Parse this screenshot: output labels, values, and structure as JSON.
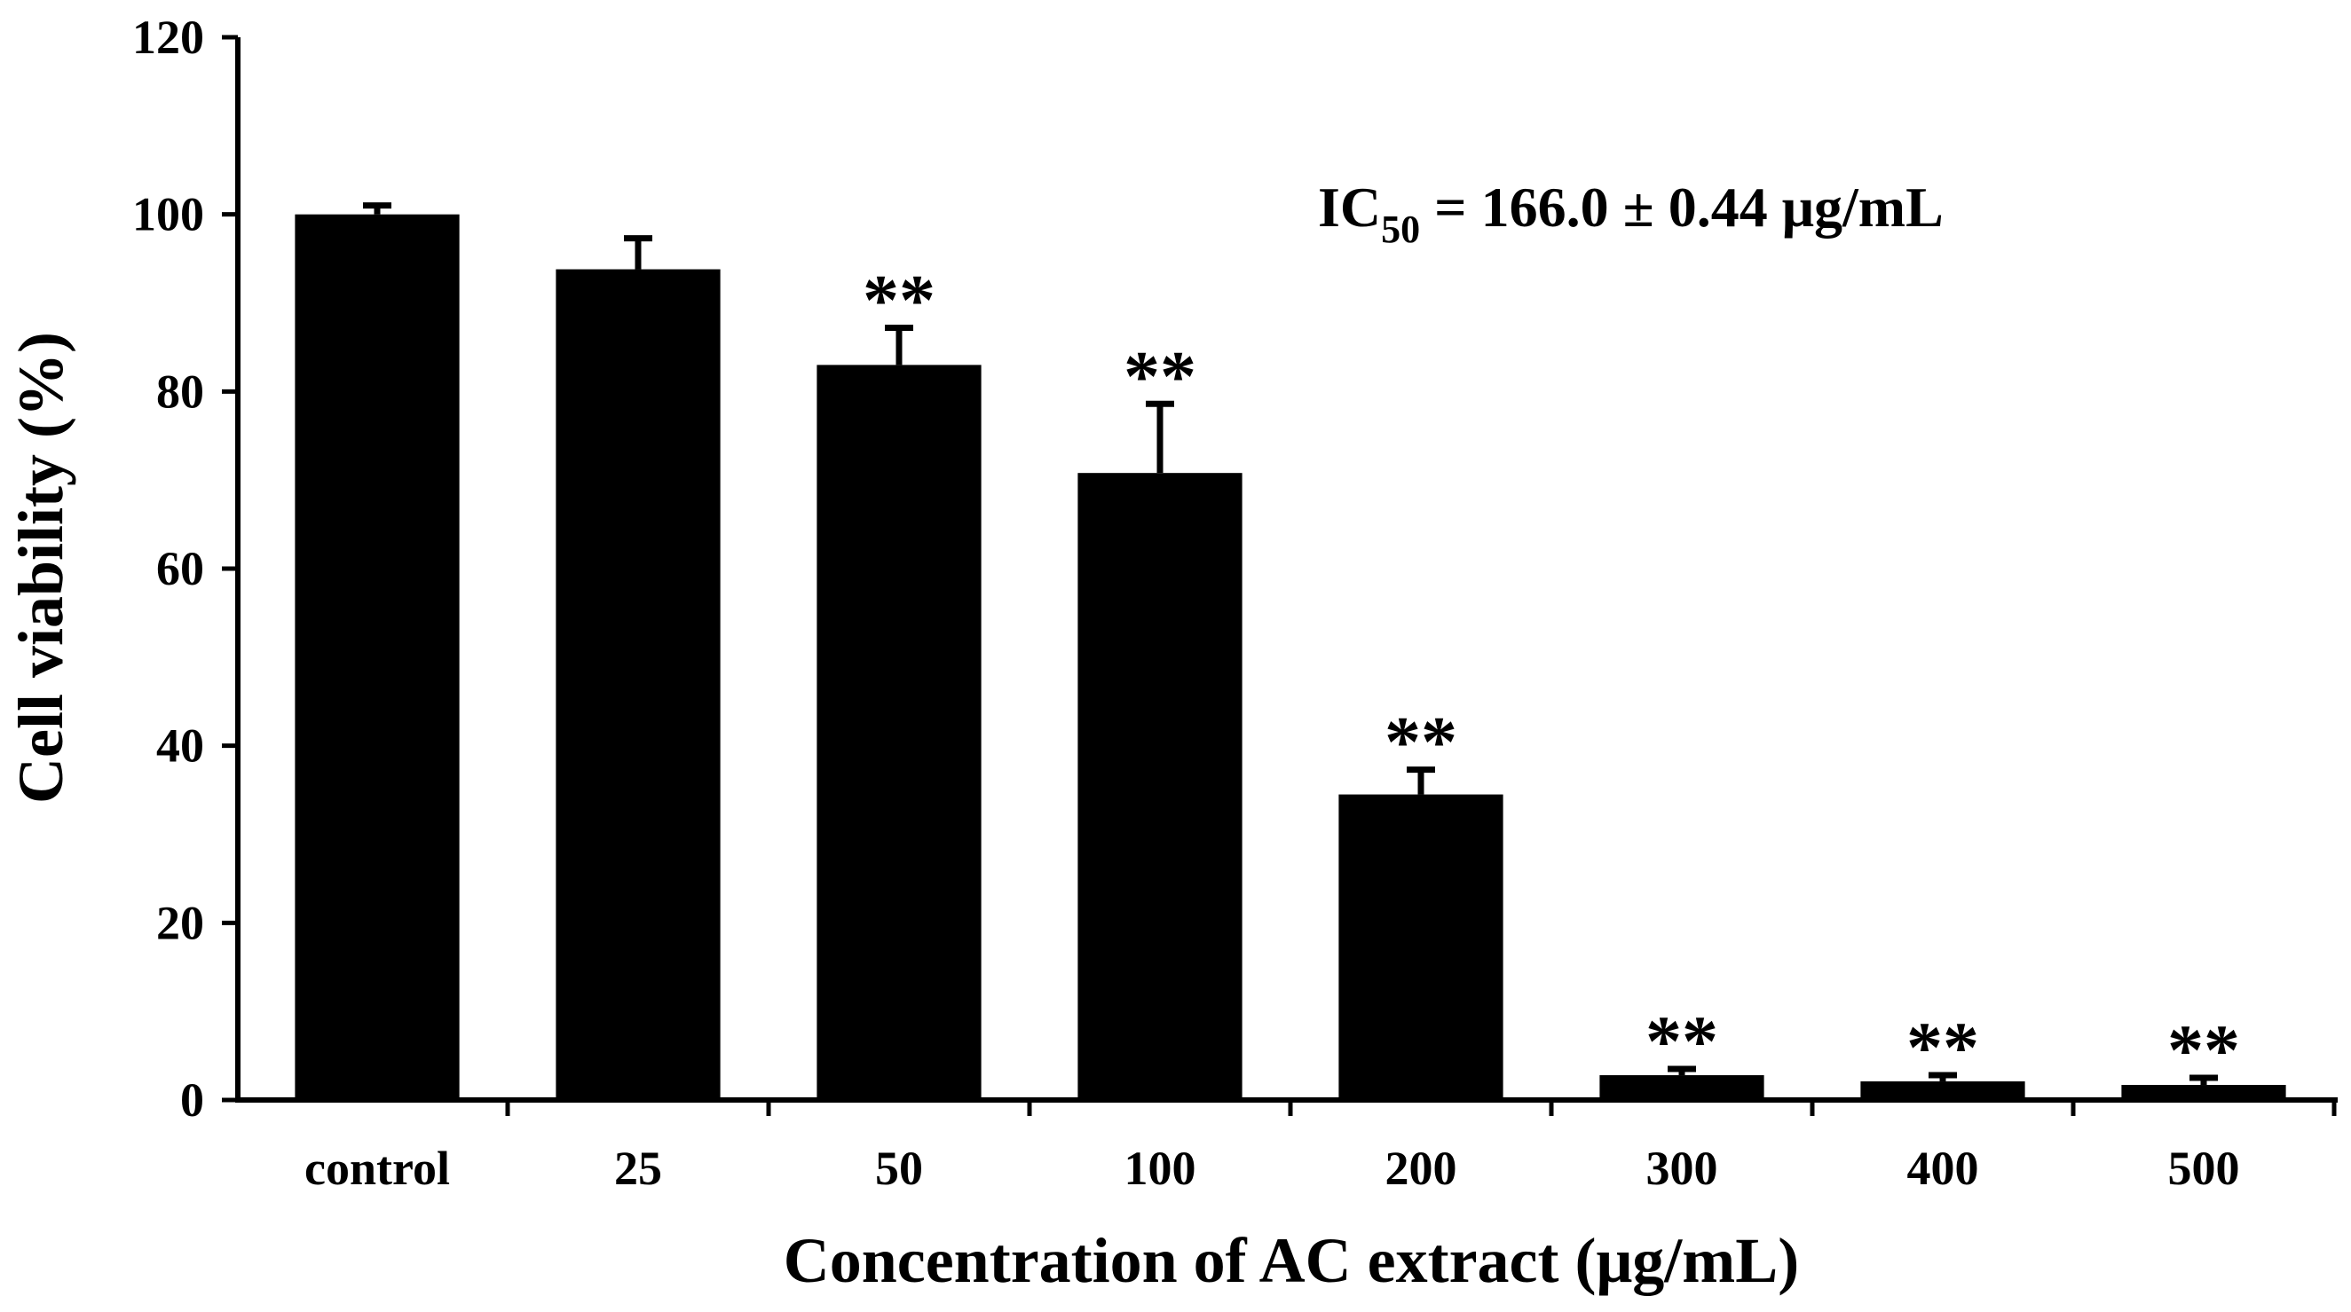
{
  "chart_data": {
    "type": "bar",
    "title": "",
    "xlabel": "Concentration of AC extract (μg/mL)",
    "ylabel": "Cell viability (%)",
    "ylim": [
      0,
      120
    ],
    "yticks": [
      0,
      20,
      40,
      60,
      80,
      100,
      120
    ],
    "categories": [
      "control",
      "25",
      "50",
      "100",
      "200",
      "300",
      "400",
      "500"
    ],
    "series": [
      {
        "values": [
          100,
          93.8,
          83,
          70.8,
          34.5,
          2.8,
          2.1,
          1.7
        ],
        "errors": [
          1.0,
          3.5,
          4.2,
          7.8,
          2.8,
          0.7,
          0.7,
          0.8
        ],
        "significance": [
          "",
          "",
          "**",
          "**",
          "**",
          "**",
          "**",
          "**"
        ]
      }
    ],
    "annotation": {
      "prefix": "IC",
      "subscript": "50",
      "text": " = 166.0 ± 0.44 μg/mL"
    },
    "bar_color": "#000000",
    "grid": false,
    "legend": "none"
  }
}
